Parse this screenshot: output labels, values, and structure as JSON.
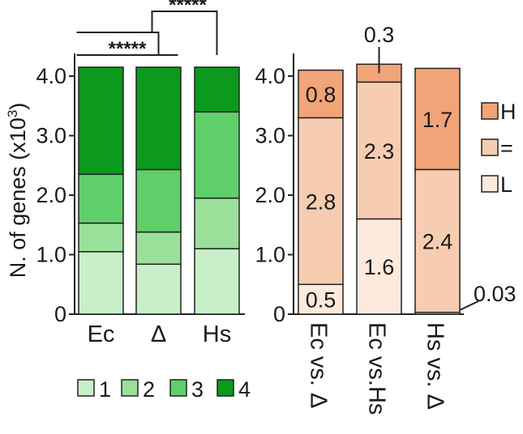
{
  "chart_data": [
    {
      "type": "bar",
      "stacked": true,
      "ylabel": "N. of genes (x10",
      "ylabel_sup": "3",
      "ylabel_close": ")",
      "ylim": [
        0,
        4.2
      ],
      "yticks": [
        "0",
        "1.0",
        "2.0",
        "3.0",
        "4.0"
      ],
      "ytick_values": [
        0,
        1,
        2,
        3,
        4
      ],
      "categories": [
        "Ec",
        "Δ",
        "Hs"
      ],
      "series": [
        {
          "name": "1",
          "color": "#c8efc8",
          "values": [
            1.05,
            0.84,
            1.1
          ]
        },
        {
          "name": "2",
          "color": "#9ae09a",
          "values": [
            0.48,
            0.54,
            0.85
          ]
        },
        {
          "name": "3",
          "color": "#5fcf6a",
          "values": [
            0.82,
            1.05,
            1.45
          ]
        },
        {
          "name": "4",
          "color": "#0b9a1b",
          "values": [
            1.8,
            1.72,
            0.75
          ]
        }
      ],
      "significance": [
        {
          "label": "*****",
          "between": [
            "Ec",
            "Δ"
          ]
        },
        {
          "label": "*****",
          "between": [
            "Ec",
            "Hs"
          ]
        }
      ],
      "legend": {
        "placement": "bottom",
        "entries": [
          "1",
          "2",
          "3",
          "4"
        ]
      }
    },
    {
      "type": "bar",
      "stacked": true,
      "ylim": [
        0,
        4.2
      ],
      "yticks": [
        "0",
        "1.0",
        "2.0",
        "3.0",
        "4.0"
      ],
      "ytick_values": [
        0,
        1,
        2,
        3,
        4
      ],
      "categories": [
        "Ec vs. Δ",
        "Ec vs.Hs",
        "Hs vs. Δ"
      ],
      "series": [
        {
          "name": "L",
          "color": "#fdeadd",
          "values": [
            0.5,
            1.6,
            0.03
          ],
          "labels": [
            "0.5",
            "1.6",
            "0.03"
          ]
        },
        {
          "name": "=",
          "color": "#f7cdb1",
          "values": [
            2.8,
            2.3,
            2.4
          ],
          "labels": [
            "2.8",
            "2.3",
            "2.4"
          ]
        },
        {
          "name": "H",
          "color": "#f0a477",
          "values": [
            0.8,
            0.3,
            1.7
          ],
          "labels": [
            "0.8",
            "0.3",
            "1.7"
          ]
        }
      ],
      "legend": {
        "placement": "right",
        "entries": [
          "H",
          "=",
          "L"
        ]
      }
    }
  ]
}
